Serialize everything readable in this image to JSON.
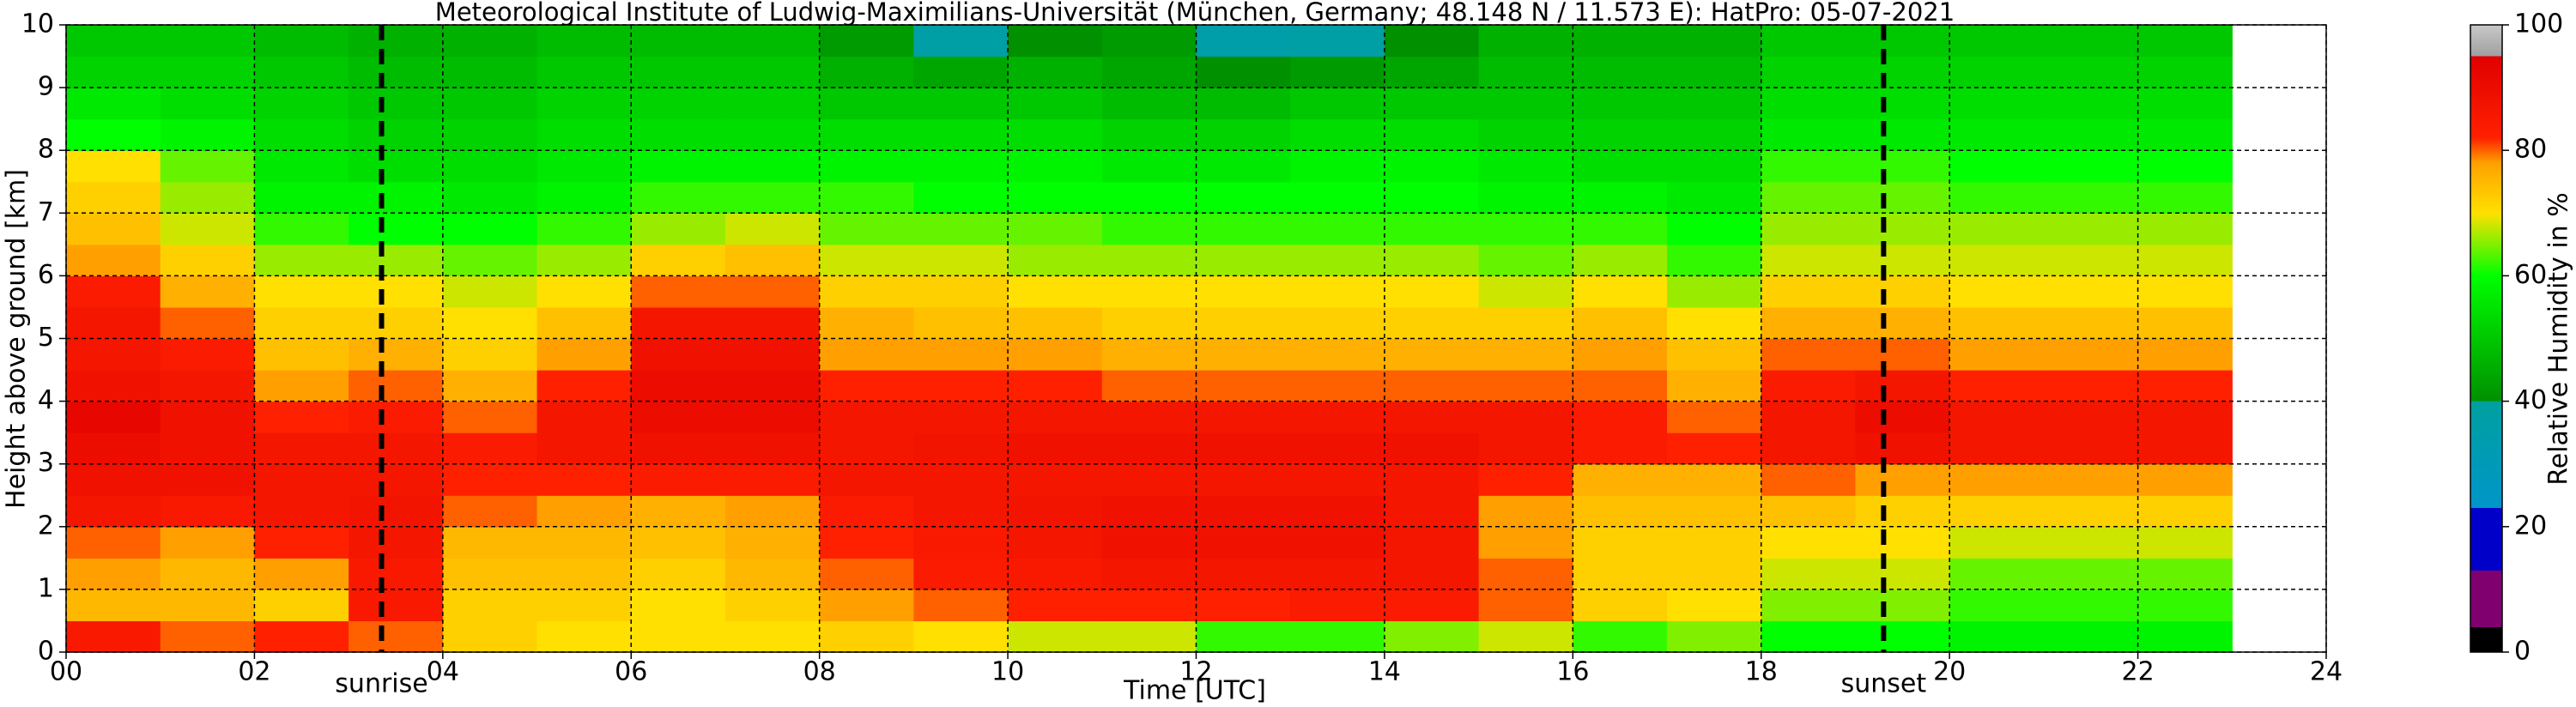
{
  "chart_data": {
    "type": "heatmap",
    "title": "Meteorological Institute of Ludwig-Maximilians-Universität (München, Germany; 48.148 N / 11.573 E):    HatPro: 05-07-2021",
    "x_label": "Time [UTC]",
    "y_label": "Height above ground [km]",
    "colorbar_label": "Relative Humidity in %",
    "xlim": [
      0,
      24
    ],
    "ylim": [
      0,
      10
    ],
    "xticks": [
      {
        "value": 0,
        "label": "00"
      },
      {
        "value": 2,
        "label": "02"
      },
      {
        "value": 4,
        "label": "04"
      },
      {
        "value": 6,
        "label": "06"
      },
      {
        "value": 8,
        "label": "08"
      },
      10,
      12,
      14,
      16,
      18,
      20,
      22,
      24
    ],
    "yticks": [
      0,
      1,
      2,
      3,
      4,
      5,
      6,
      7,
      8,
      9,
      10
    ],
    "zlim": [
      0,
      100
    ],
    "zticks": [
      0,
      20,
      40,
      60,
      80,
      100
    ],
    "grid": true,
    "colorscale": [
      [
        0,
        "#000000"
      ],
      [
        4,
        "#000000"
      ],
      [
        4,
        "#800070"
      ],
      [
        13,
        "#800070"
      ],
      [
        13,
        "#0000c8"
      ],
      [
        23,
        "#0000c8"
      ],
      [
        23,
        "#0096c8"
      ],
      [
        40,
        "#00a0a0"
      ],
      [
        40,
        "#009000"
      ],
      [
        60,
        "#00ff00"
      ],
      [
        70,
        "#ffe000"
      ],
      [
        78,
        "#ffa000"
      ],
      [
        82,
        "#ff2000"
      ],
      [
        95,
        "#e00000"
      ],
      [
        95,
        "#a0a0a0"
      ],
      [
        100,
        "#c8c8c8"
      ]
    ],
    "annotations": [
      {
        "text": "sunrise",
        "x": 3.35
      },
      {
        "text": "sunset",
        "x": 19.3
      }
    ],
    "x": [
      0,
      1,
      2,
      3,
      4,
      5,
      6,
      7,
      8,
      9,
      10,
      11,
      12,
      13,
      14,
      15,
      16,
      17,
      18,
      19,
      20,
      21,
      22
    ],
    "y": [
      0,
      0.5,
      1,
      1.5,
      2,
      2.5,
      3,
      3.5,
      4,
      4.5,
      5,
      5.5,
      6,
      6.5,
      7,
      7.5,
      8,
      8.5,
      9,
      9.5
    ],
    "z": [
      [
        85,
        80,
        82,
        80,
        72,
        70,
        70,
        70,
        72,
        70,
        68,
        68,
        62,
        62,
        65,
        68,
        62,
        65,
        60,
        60,
        58,
        58,
        58
      ],
      [
        75,
        75,
        72,
        85,
        72,
        72,
        70,
        72,
        78,
        80,
        82,
        82,
        82,
        84,
        84,
        80,
        72,
        70,
        65,
        65,
        62,
        62,
        62
      ],
      [
        78,
        75,
        78,
        85,
        74,
        74,
        72,
        75,
        80,
        84,
        85,
        86,
        86,
        86,
        86,
        80,
        72,
        72,
        68,
        68,
        64,
        64,
        64
      ],
      [
        80,
        78,
        82,
        86,
        75,
        75,
        74,
        76,
        82,
        85,
        86,
        88,
        88,
        88,
        86,
        78,
        72,
        72,
        70,
        70,
        68,
        68,
        68
      ],
      [
        86,
        85,
        86,
        87,
        80,
        78,
        76,
        78,
        84,
        86,
        87,
        88,
        88,
        88,
        86,
        78,
        74,
        74,
        74,
        72,
        72,
        72,
        72
      ],
      [
        88,
        88,
        86,
        86,
        82,
        82,
        84,
        84,
        86,
        86,
        86,
        86,
        86,
        86,
        86,
        82,
        76,
        76,
        80,
        78,
        78,
        78,
        78
      ],
      [
        90,
        88,
        86,
        86,
        84,
        86,
        88,
        88,
        86,
        87,
        88,
        88,
        88,
        88,
        88,
        86,
        84,
        82,
        86,
        88,
        86,
        86,
        86
      ],
      [
        92,
        88,
        82,
        84,
        80,
        86,
        90,
        90,
        86,
        86,
        86,
        86,
        86,
        86,
        86,
        86,
        84,
        80,
        86,
        90,
        86,
        86,
        86
      ],
      [
        88,
        86,
        78,
        80,
        76,
        82,
        90,
        90,
        82,
        82,
        82,
        80,
        80,
        80,
        80,
        80,
        80,
        76,
        84,
        86,
        82,
        82,
        82
      ],
      [
        86,
        84,
        74,
        76,
        72,
        78,
        88,
        88,
        78,
        78,
        78,
        76,
        76,
        76,
        76,
        76,
        78,
        74,
        80,
        80,
        78,
        78,
        78
      ],
      [
        86,
        80,
        72,
        72,
        70,
        74,
        86,
        86,
        76,
        74,
        74,
        72,
        72,
        72,
        72,
        72,
        74,
        70,
        76,
        76,
        74,
        74,
        74
      ],
      [
        84,
        76,
        70,
        70,
        68,
        70,
        80,
        80,
        72,
        72,
        70,
        70,
        70,
        70,
        70,
        68,
        70,
        66,
        72,
        72,
        70,
        70,
        70
      ],
      [
        78,
        72,
        66,
        66,
        64,
        66,
        72,
        74,
        68,
        68,
        66,
        66,
        66,
        66,
        66,
        64,
        66,
        62,
        68,
        68,
        68,
        68,
        68
      ],
      [
        74,
        68,
        62,
        60,
        60,
        62,
        66,
        68,
        64,
        64,
        64,
        62,
        62,
        62,
        62,
        62,
        62,
        60,
        66,
        66,
        66,
        66,
        66
      ],
      [
        72,
        66,
        58,
        58,
        56,
        58,
        62,
        62,
        62,
        60,
        60,
        60,
        60,
        60,
        60,
        58,
        58,
        56,
        64,
        64,
        62,
        62,
        62
      ],
      [
        70,
        64,
        56,
        54,
        54,
        56,
        58,
        58,
        58,
        58,
        58,
        56,
        56,
        58,
        58,
        56,
        54,
        54,
        62,
        62,
        60,
        60,
        60
      ],
      [
        60,
        58,
        54,
        52,
        52,
        54,
        54,
        54,
        54,
        54,
        54,
        52,
        52,
        54,
        54,
        52,
        52,
        52,
        56,
        56,
        56,
        56,
        56
      ],
      [
        56,
        54,
        52,
        50,
        50,
        52,
        52,
        52,
        50,
        50,
        50,
        48,
        48,
        50,
        50,
        50,
        50,
        50,
        54,
        54,
        54,
        54,
        54
      ],
      [
        52,
        52,
        50,
        48,
        48,
        50,
        50,
        50,
        46,
        44,
        46,
        44,
        40,
        42,
        44,
        48,
        48,
        48,
        52,
        52,
        52,
        52,
        52
      ],
      [
        50,
        50,
        48,
        46,
        46,
        48,
        48,
        48,
        42,
        38,
        40,
        42,
        36,
        38,
        40,
        46,
        46,
        46,
        50,
        50,
        50,
        50,
        50
      ]
    ]
  }
}
